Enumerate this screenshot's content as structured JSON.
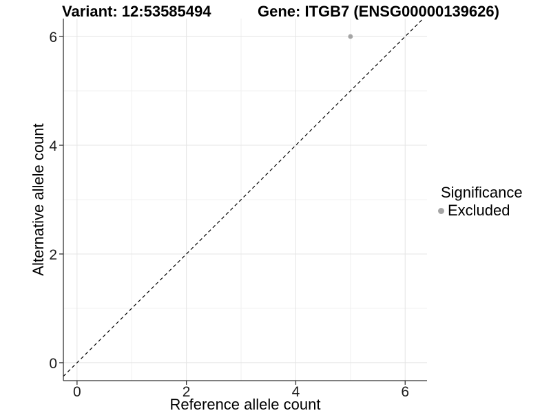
{
  "chart_data": {
    "type": "scatter",
    "title_left": "Variant: 12:53585494",
    "title_right": "Gene: ITGB7 (ENSG00000139626)",
    "xlabel": "Reference allele count",
    "ylabel": "Alternative allele count",
    "xlim": [
      -0.25,
      6.4
    ],
    "ylim": [
      -0.33,
      6.33
    ],
    "x_major_ticks": [
      0,
      2,
      4,
      6
    ],
    "x_minor_ticks": [
      1,
      3,
      5
    ],
    "y_major_ticks": [
      0,
      2,
      4,
      6
    ],
    "y_minor_ticks": [
      1,
      3,
      5
    ],
    "grid": true,
    "points": [
      {
        "x": 5,
        "y": 6,
        "series": "Excluded"
      }
    ],
    "reference_line": {
      "slope": 1,
      "intercept": 0,
      "style": "dashed",
      "color": "#000000"
    },
    "legend": {
      "title": "Significance",
      "position": "right",
      "items": [
        {
          "label": "Excluded",
          "color": "#a5a5a5"
        }
      ]
    },
    "colors": {
      "background": "#ffffff",
      "grid_major": "#e4e4e4",
      "grid_minor": "#f0f0f0",
      "axis_line": "#333333",
      "tick_mark": "#333333",
      "tick_text": "#1a1a1a",
      "point": "#a5a5a5"
    }
  }
}
